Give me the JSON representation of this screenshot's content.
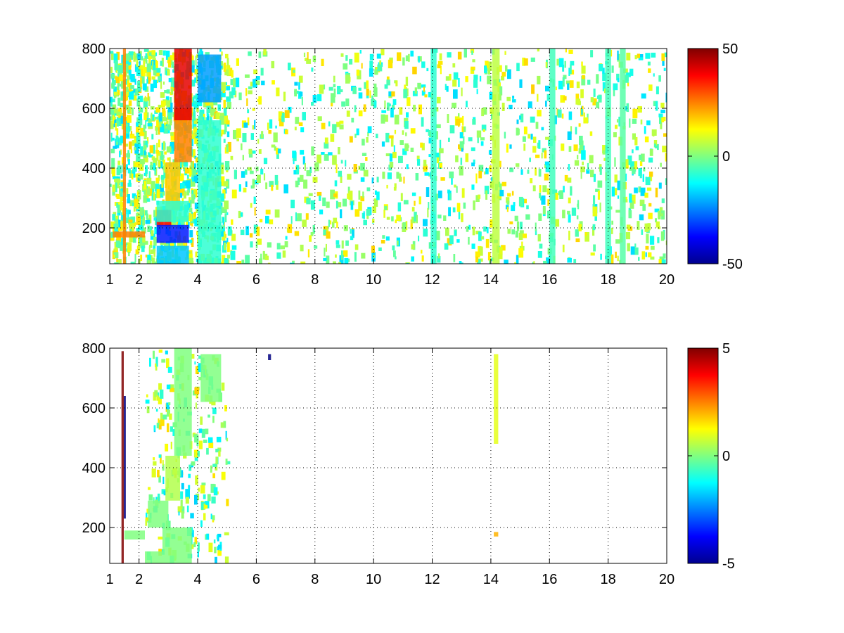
{
  "chart_data": [
    {
      "type": "heatmap",
      "title": "",
      "xlabel": "",
      "ylabel": "",
      "grid": true,
      "xlim": [
        1,
        20
      ],
      "ylim": [
        80,
        800
      ],
      "xticks": [
        1,
        2,
        4,
        6,
        8,
        10,
        12,
        14,
        16,
        18,
        20
      ],
      "yticks": [
        200,
        400,
        600,
        800
      ],
      "colorbar": {
        "min": -50,
        "max": 50,
        "ticks": [
          50,
          0,
          -50
        ],
        "colormap": "jet"
      },
      "features": [
        {
          "x": [
            1.45,
            1.55
          ],
          "y": [
            80,
            800
          ],
          "value": 25
        },
        {
          "x": [
            1.1,
            2.2
          ],
          "y": [
            168,
            188
          ],
          "value": 25
        },
        {
          "x": [
            2.6,
            3.1
          ],
          "y": [
            205,
            260
          ],
          "value": 38
        },
        {
          "x": [
            2.9,
            3.4
          ],
          "y": [
            260,
            420
          ],
          "value": 18
        },
        {
          "x": [
            3.2,
            3.8
          ],
          "y": [
            420,
            600
          ],
          "value": 25
        },
        {
          "x": [
            3.2,
            3.8
          ],
          "y": [
            560,
            800
          ],
          "value": 40
        },
        {
          "x": [
            2.6,
            3.7
          ],
          "y": [
            150,
            210
          ],
          "value": -35
        },
        {
          "x": [
            2.6,
            3.7
          ],
          "y": [
            80,
            140
          ],
          "value": -18
        },
        {
          "x": [
            2.6,
            3.7
          ],
          "y": [
            220,
            290
          ],
          "value": -8
        },
        {
          "x": [
            4.0,
            4.8
          ],
          "y": [
            620,
            780
          ],
          "value": -22
        },
        {
          "x": [
            4.0,
            4.8
          ],
          "y": [
            80,
            560
          ],
          "value": -8
        },
        {
          "x": [
            14.05,
            14.3
          ],
          "y": [
            80,
            800
          ],
          "value": 6
        },
        {
          "x": [
            11.95,
            12.15
          ],
          "y": [
            80,
            800
          ],
          "value": -8
        },
        {
          "x": [
            16.0,
            16.2
          ],
          "y": [
            80,
            800
          ],
          "value": -6
        },
        {
          "x": [
            17.9,
            18.1
          ],
          "y": [
            80,
            800
          ],
          "value": -6
        },
        {
          "x": [
            18.4,
            18.6
          ],
          "y": [
            80,
            800
          ],
          "value": -4
        }
      ]
    },
    {
      "type": "heatmap",
      "title": "",
      "xlabel": "",
      "ylabel": "",
      "grid": true,
      "xlim": [
        1,
        20
      ],
      "ylim": [
        80,
        800
      ],
      "xticks": [
        1,
        2,
        4,
        6,
        8,
        10,
        12,
        14,
        16,
        18,
        20
      ],
      "yticks": [
        200,
        400,
        600,
        800
      ],
      "colorbar": {
        "min": -5,
        "max": 5,
        "ticks": [
          5,
          0,
          -5
        ],
        "colormap": "jet"
      },
      "features": [
        {
          "x": [
            1.4,
            1.48
          ],
          "y": [
            80,
            790
          ],
          "value": 5
        },
        {
          "x": [
            1.48,
            1.55
          ],
          "y": [
            230,
            640
          ],
          "value": -5
        },
        {
          "x": [
            2.2,
            2.8
          ],
          "y": [
            80,
            120
          ],
          "value": 0
        },
        {
          "x": [
            1.5,
            2.2
          ],
          "y": [
            160,
            190
          ],
          "value": 0
        },
        {
          "x": [
            2.3,
            3.0
          ],
          "y": [
            200,
            290
          ],
          "value": 0
        },
        {
          "x": [
            2.9,
            3.4
          ],
          "y": [
            290,
            440
          ],
          "value": 0.5
        },
        {
          "x": [
            3.2,
            3.8
          ],
          "y": [
            440,
            800
          ],
          "value": 0
        },
        {
          "x": [
            2.8,
            3.8
          ],
          "y": [
            80,
            200
          ],
          "value": 0
        },
        {
          "x": [
            4.1,
            4.8
          ],
          "y": [
            620,
            780
          ],
          "value": 0
        },
        {
          "x": [
            6.4,
            6.5
          ],
          "y": [
            760,
            780
          ],
          "value": -5
        },
        {
          "x": [
            14.1,
            14.25
          ],
          "y": [
            480,
            780
          ],
          "value": 1
        },
        {
          "x": [
            14.1,
            14.25
          ],
          "y": [
            170,
            185
          ],
          "value": 2
        }
      ]
    }
  ]
}
